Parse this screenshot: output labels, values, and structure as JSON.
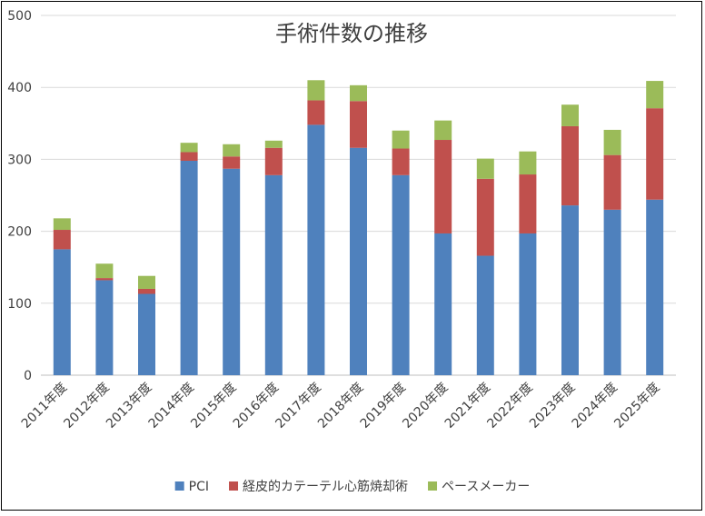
{
  "chart_data": {
    "type": "bar",
    "stacked": true,
    "title": "手術件数の推移",
    "xlabel": "",
    "ylabel": "",
    "ylim": [
      0,
      500
    ],
    "yticks": [
      0,
      100,
      200,
      300,
      400,
      500
    ],
    "grid": true,
    "legend_position": "bottom",
    "categories": [
      "2011年度",
      "2012年度",
      "2013年度",
      "2014年度",
      "2015年度",
      "2016年度",
      "2017年度",
      "2018年度",
      "2019年度",
      "2020年度",
      "2021年度",
      "2022年度",
      "2023年度",
      "2024年度",
      "2025年度"
    ],
    "series": [
      {
        "name": "PCI",
        "color": "#4f81bd",
        "values": [
          175,
          132,
          113,
          298,
          287,
          278,
          348,
          316,
          278,
          197,
          166,
          197,
          236,
          230,
          244
        ]
      },
      {
        "name": "経皮的カテーテル心筋焼却術",
        "color": "#c0504d",
        "values": [
          27,
          3,
          7,
          12,
          17,
          38,
          34,
          65,
          37,
          130,
          107,
          82,
          110,
          76,
          127
        ]
      },
      {
        "name": "ペースメーカー",
        "color": "#9bbb59",
        "values": [
          16,
          20,
          18,
          13,
          17,
          10,
          28,
          22,
          25,
          27,
          28,
          32,
          30,
          35,
          38
        ]
      }
    ]
  }
}
